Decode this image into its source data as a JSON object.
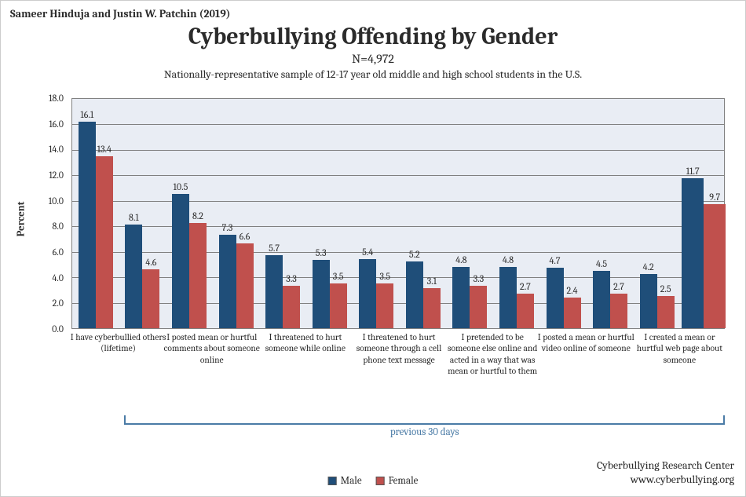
{
  "byline": "Sameer Hinduja and Justin W. Patchin (2019)",
  "title": "Cyberbullying Offending by Gender",
  "sample_size": "N=4,972",
  "subtitle": "Nationally-representative sample of 12-17 year old middle and high school students in the U.S.",
  "ylabel": "Percent",
  "chart": {
    "type": "bar",
    "ylim": [
      0,
      18
    ],
    "ytick_step": 2,
    "ytick_decimals": 1,
    "background_color": "#e9edf4",
    "grid_color": "#808080",
    "border_color": "#808080",
    "male_color": "#1f4e79",
    "female_color": "#c0504d",
    "small_bar_width": 22,
    "big_bar_width": 28,
    "label_fontsize": 12,
    "categories": [
      {
        "label": "I have cyberbullied others (lifetime)",
        "male": 16.1,
        "female": 13.4
      },
      {
        "label": "",
        "male": 8.1,
        "female": 4.6
      },
      {
        "label": "I posted mean or hurtful comments about someone online",
        "male": 10.5,
        "female": 8.2
      },
      {
        "label": "",
        "male": 7.3,
        "female": 6.6
      },
      {
        "label": "I threatened to hurt someone while online",
        "male": 5.7,
        "female": 3.3
      },
      {
        "label": "",
        "male": 5.3,
        "female": 3.5
      },
      {
        "label": "I threatened to hurt someone through a cell phone text message",
        "male": 5.4,
        "female": 3.5
      },
      {
        "label": "",
        "male": 5.2,
        "female": 3.1
      },
      {
        "label": "I pretended to be someone else online and acted in a way that was mean or hurtful to them",
        "male": 4.8,
        "female": 3.3
      },
      {
        "label": "",
        "male": 4.8,
        "female": 2.7
      },
      {
        "label": "I posted a mean or hurtful video online of someone",
        "male": 4.7,
        "female": 2.4
      },
      {
        "label": "",
        "male": 4.5,
        "female": 2.7
      },
      {
        "label": "I created a mean or hurtful web page about someone",
        "male": 4.2,
        "female": 2.5
      },
      {
        "label": "",
        "male": 11.7,
        "female": 9.7,
        "big": true
      }
    ],
    "bracket_label": "previous 30 days",
    "bracket_color": "#4a7ba6"
  },
  "legend": {
    "male": "Male",
    "female": "Female"
  },
  "attribution": {
    "line1": "Cyberbullying Research Center",
    "line2": "www.cyberbullying.org"
  }
}
